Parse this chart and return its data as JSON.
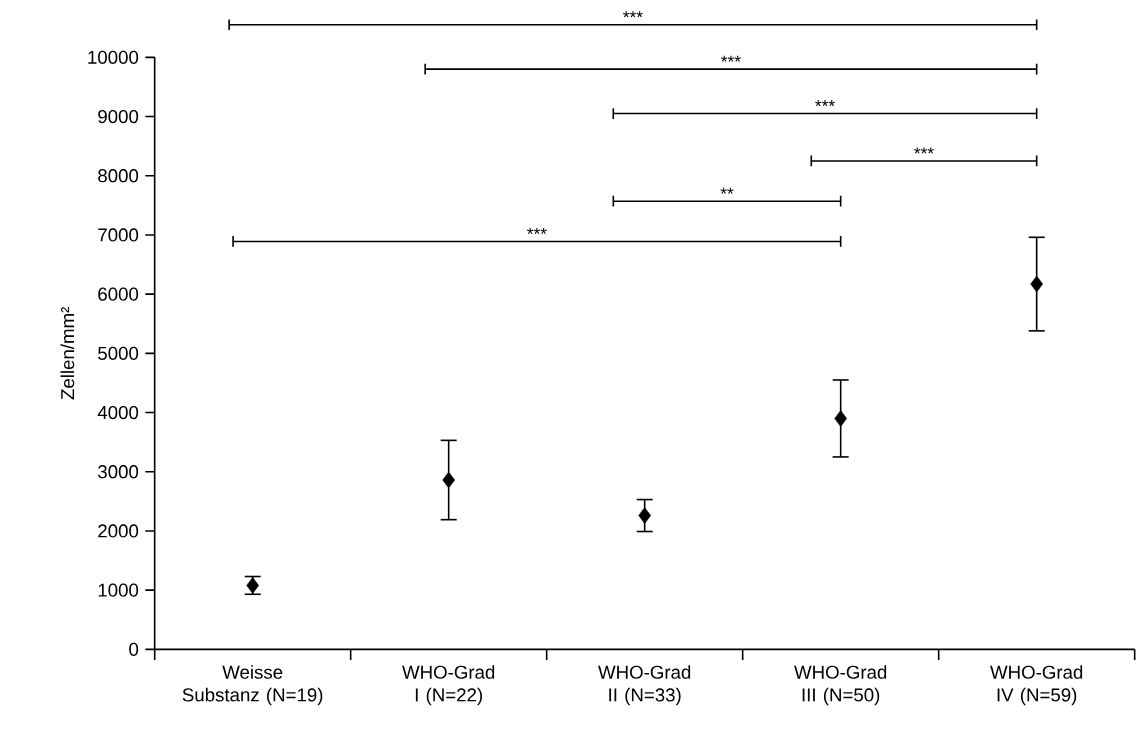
{
  "chart_data": {
    "type": "scatter",
    "ylabel": "Zellen/mm²",
    "categories": [
      "Weisse Substanz (N=19)",
      "WHO-Grad I (N=22)",
      "WHO-Grad II (N=33)",
      "WHO-Grad III (N=50)",
      "WHO-Grad IV (N=59)"
    ],
    "values": [
      1080,
      2860,
      2260,
      3900,
      6170
    ],
    "errors": [
      150,
      670,
      270,
      650,
      790
    ],
    "color": "#000000",
    "marker": "diamond",
    "ylim": [
      0,
      10000
    ],
    "yticks": [
      0,
      1000,
      2000,
      3000,
      4000,
      5000,
      6000,
      7000,
      8000,
      9000,
      10000
    ],
    "grid": false,
    "annotations": [
      "***",
      "***",
      "***",
      "***",
      "**",
      "***"
    ]
  }
}
